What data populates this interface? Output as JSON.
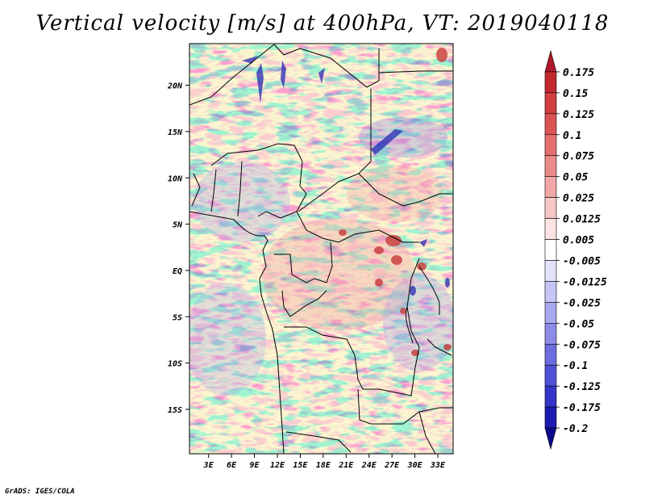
{
  "title": "Vertical velocity [m/s] at 400hPa, VT: 2019040118",
  "credit": "GrADS: IGES/COLA",
  "map": {
    "lat_labels": [
      "20N",
      "15N",
      "10N",
      "5N",
      "EQ",
      "5S",
      "10S",
      "15S"
    ],
    "lat_values": [
      20,
      15,
      10,
      5,
      0,
      -5,
      -10,
      -15
    ],
    "lon_labels": [
      "3E",
      "6E",
      "9E",
      "12E",
      "15E",
      "18E",
      "21E",
      "24E",
      "27E",
      "30E",
      "33E"
    ],
    "lon_values": [
      3,
      6,
      9,
      12,
      15,
      18,
      21,
      24,
      27,
      30,
      33
    ],
    "lon_range": [
      0.5,
      35
    ],
    "lat_range": [
      -19.8,
      24.5
    ]
  },
  "colorbar": {
    "labels": [
      "0.175",
      "0.15",
      "0.125",
      "0.1",
      "0.075",
      "0.05",
      "0.025",
      "0.0125",
      "0.005",
      "-0.005",
      "-0.0125",
      "-0.025",
      "-0.05",
      "-0.075",
      "-0.1",
      "-0.125",
      "-0.175",
      "-0.2"
    ],
    "colors": [
      "#b2182b",
      "#c2292f",
      "#d03e3e",
      "#db5454",
      "#e46f6f",
      "#ec8a8a",
      "#f2a7a7",
      "#f8c7c7",
      "#fde3e3",
      "#ffffff",
      "#e2e2fb",
      "#c6c6f6",
      "#a8a8ef",
      "#8c8ce8",
      "#6d6de0",
      "#5050d6",
      "#3434c8",
      "#1c1cb0",
      "#0b0b8c"
    ]
  },
  "field_colors": {
    "red_strong": "#c83a3a",
    "red_mid": "#f2a0a0",
    "blue_mid": "#9a9aea",
    "blue_strong": "#2828b4",
    "neutral": "#e8e8f6"
  }
}
